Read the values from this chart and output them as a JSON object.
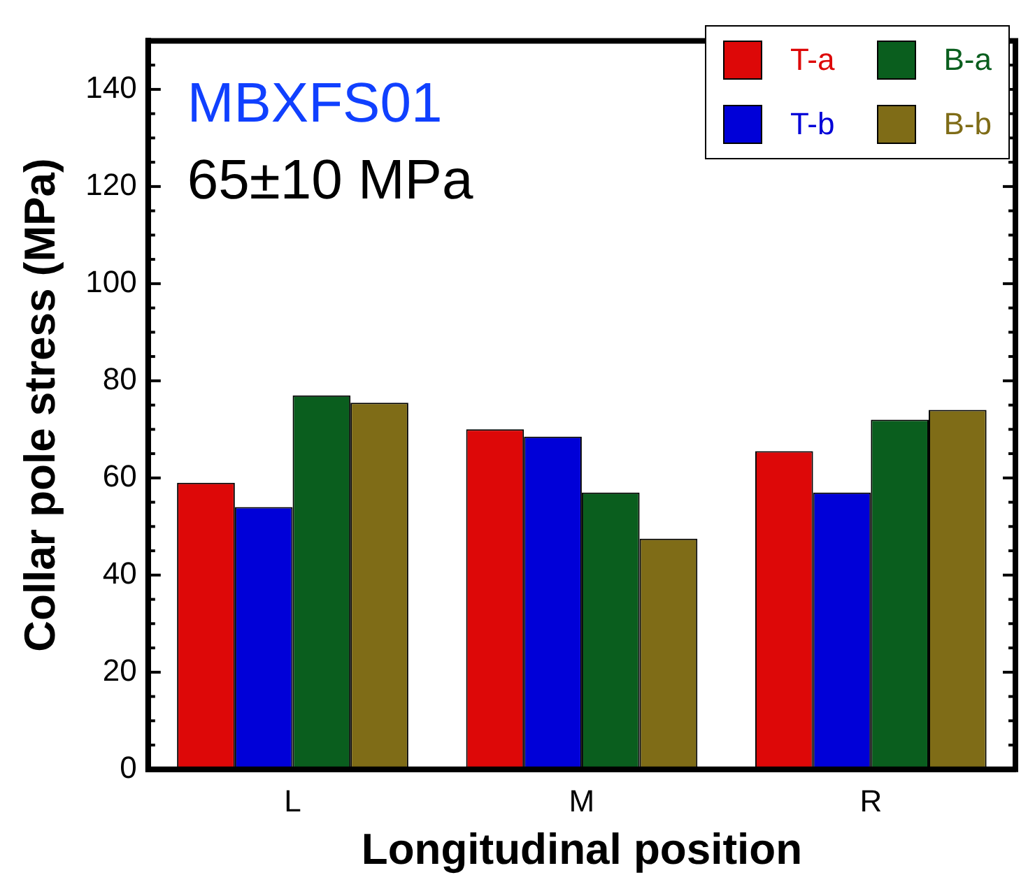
{
  "chart_data": {
    "type": "bar",
    "xlabel": "Longitudinal position",
    "ylabel": "Collar pole stress (MPa)",
    "categories": [
      "L",
      "M",
      "R"
    ],
    "series": [
      {
        "name": "T-a",
        "color": "#dd0808",
        "values": [
          59,
          70,
          65.5
        ]
      },
      {
        "name": "T-b",
        "color": "#0000d8",
        "values": [
          54,
          68.5,
          57
        ]
      },
      {
        "name": "B-a",
        "color": "#0a5e1e",
        "values": [
          77,
          57,
          72
        ]
      },
      {
        "name": "B-b",
        "color": "#7f6c17",
        "values": [
          75.5,
          47.5,
          74
        ]
      }
    ],
    "ylim": [
      0,
      150
    ],
    "yticks": [
      0,
      {
        "value": 5,
        "label": null
      },
      20,
      {
        "value": 10,
        "label": null
      },
      {
        "value": 15,
        "label": null
      },
      {
        "value": 25,
        "label": null
      },
      40,
      {
        "value": 30,
        "label": null
      },
      {
        "value": 35,
        "label": null
      },
      {
        "value": 45,
        "label": null
      },
      60,
      {
        "value": 50,
        "label": null
      },
      {
        "value": 55,
        "label": null
      },
      {
        "value": 65,
        "label": null
      },
      80,
      {
        "value": 70,
        "label": null
      },
      {
        "value": 75,
        "label": null
      },
      {
        "value": 85,
        "label": null
      },
      100,
      {
        "value": 90,
        "label": null
      },
      {
        "value": 95,
        "label": null
      },
      {
        "value": 105,
        "label": null
      },
      120,
      {
        "value": 110,
        "label": null
      },
      {
        "value": 115,
        "label": null
      },
      {
        "value": 125,
        "label": null
      },
      140,
      {
        "value": 130,
        "label": null
      },
      {
        "value": 135,
        "label": null
      },
      {
        "value": 145,
        "label": null
      }
    ],
    "annotations": [
      "MBXFS01",
      "65±10 MPa"
    ],
    "grid": false,
    "legend": "top right"
  }
}
